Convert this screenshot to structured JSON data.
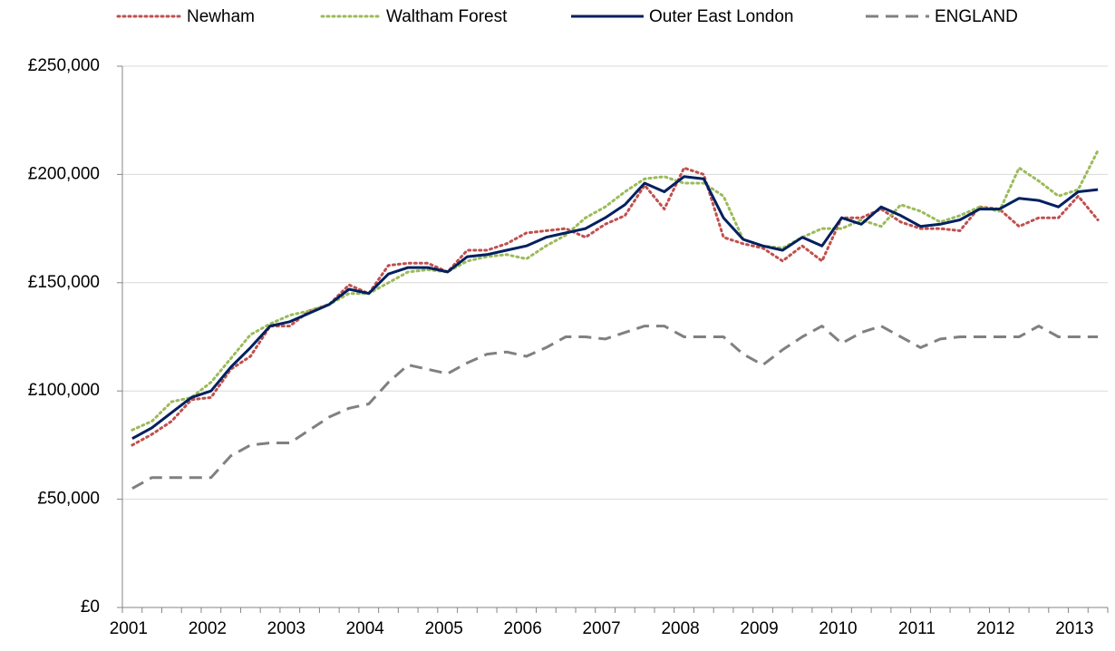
{
  "chart_data": {
    "type": "line",
    "categories": [
      "2001",
      null,
      null,
      null,
      "2002",
      null,
      null,
      null,
      "2003",
      null,
      null,
      null,
      "2004",
      null,
      null,
      null,
      "2005",
      null,
      null,
      null,
      "2006",
      null,
      null,
      null,
      "2007",
      null,
      null,
      null,
      "2008",
      null,
      null,
      null,
      "2009",
      null,
      null,
      null,
      "2010",
      null,
      null,
      null,
      "2011",
      null,
      null,
      null,
      "2012",
      null,
      null,
      null,
      "2013",
      null
    ],
    "series": [
      {
        "name": "Newham",
        "color": "#c0504d",
        "style": "dotted",
        "values": [
          75000,
          80000,
          86000,
          96000,
          97000,
          110000,
          116000,
          130000,
          130000,
          137000,
          140000,
          149000,
          145000,
          158000,
          159000,
          159000,
          155000,
          165000,
          165000,
          168000,
          173000,
          174000,
          175000,
          171000,
          177000,
          181000,
          195000,
          184000,
          203000,
          200000,
          171000,
          168000,
          166000,
          160000,
          167000,
          160000,
          180000,
          180000,
          184000,
          178000,
          175000,
          175000,
          174000,
          185000,
          184000,
          176000,
          180000,
          180000,
          190000,
          179000
        ]
      },
      {
        "name": "Waltham Forest",
        "color": "#9bbb59",
        "style": "dotted",
        "values": [
          82000,
          86000,
          95000,
          97000,
          104000,
          115000,
          126000,
          131000,
          135000,
          137000,
          140000,
          145000,
          145000,
          150000,
          155000,
          156000,
          155000,
          160000,
          162000,
          163000,
          161000,
          167000,
          172000,
          180000,
          185000,
          192000,
          198000,
          199000,
          196000,
          196000,
          190000,
          170000,
          167000,
          166000,
          171000,
          175000,
          175000,
          179000,
          176000,
          186000,
          183000,
          178000,
          181000,
          185000,
          183000,
          203000,
          197000,
          190000,
          193000,
          211000
        ]
      },
      {
        "name": "Outer East London",
        "color": "#002060",
        "style": "solid",
        "values": [
          78000,
          83000,
          90000,
          97000,
          100000,
          111000,
          120000,
          130000,
          132000,
          136000,
          140000,
          147000,
          145000,
          154000,
          157000,
          157000,
          155000,
          162000,
          163000,
          165000,
          167000,
          171000,
          173000,
          175000,
          180000,
          186000,
          196000,
          192000,
          199000,
          198000,
          180000,
          170000,
          167000,
          165000,
          171000,
          167000,
          180000,
          177000,
          185000,
          181000,
          176000,
          177000,
          179000,
          184000,
          184000,
          189000,
          188000,
          185000,
          192000,
          193000
        ]
      },
      {
        "name": "ENGLAND",
        "color": "#808080",
        "style": "dashed",
        "values": [
          55000,
          60000,
          60000,
          60000,
          60000,
          70000,
          75000,
          76000,
          76000,
          82000,
          88000,
          92000,
          94000,
          104000,
          112000,
          110000,
          108000,
          113000,
          117000,
          118000,
          116000,
          120000,
          125000,
          125000,
          124000,
          127000,
          130000,
          130000,
          125000,
          125000,
          125000,
          117000,
          112000,
          119000,
          125000,
          130000,
          122000,
          127000,
          130000,
          125000,
          120000,
          124000,
          125000,
          125000,
          125000,
          125000,
          130000,
          125000,
          125000,
          125000
        ]
      }
    ],
    "ylim": [
      0,
      250000
    ],
    "yticks": [
      {
        "value": 0,
        "label": "£0"
      },
      {
        "value": 50000,
        "label": "£50,000"
      },
      {
        "value": 100000,
        "label": "£100,000"
      },
      {
        "value": 150000,
        "label": "£150,000"
      },
      {
        "value": 200000,
        "label": "£200,000"
      },
      {
        "value": 250000,
        "label": "£250,000"
      }
    ],
    "grid": true,
    "legend": "top"
  }
}
